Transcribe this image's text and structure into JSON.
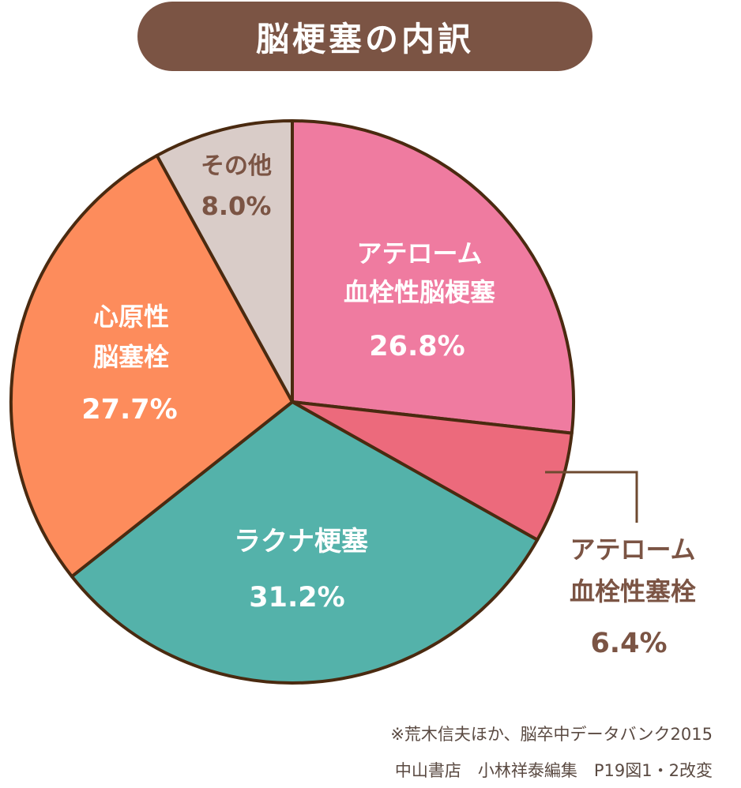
{
  "chart_data": {
    "type": "pie",
    "title": "脳梗塞の内訳",
    "slices": [
      {
        "label_line1": "アテローム",
        "label_line2": "血栓性脳梗塞",
        "value": 26.8,
        "value_label": "26.8%",
        "color": "#ef7ba0"
      },
      {
        "label_line1": "アテローム",
        "label_line2": "血栓性塞栓",
        "value": 6.4,
        "value_label": "6.4%",
        "color": "#ec6a7c"
      },
      {
        "label_line1": "ラクナ梗塞",
        "label_line2": "",
        "value": 31.2,
        "value_label": "31.2%",
        "color": "#54b2aa"
      },
      {
        "label_line1": "心原性",
        "label_line2": "脳塞栓",
        "value": 27.7,
        "value_label": "27.7%",
        "color": "#fd8c5c"
      },
      {
        "label_line1": "その他",
        "label_line2": "",
        "value": 8.0,
        "value_label": "8.0%",
        "color": "#d9ccc8"
      }
    ],
    "outline_color": "#4a2a10",
    "title_bg_color": "#7b5444"
  },
  "source": {
    "line1": "※荒木信夫ほか、脳卒中データバンク2015",
    "line2": "中山書店　小林祥泰編集　P19図1・2改変"
  }
}
